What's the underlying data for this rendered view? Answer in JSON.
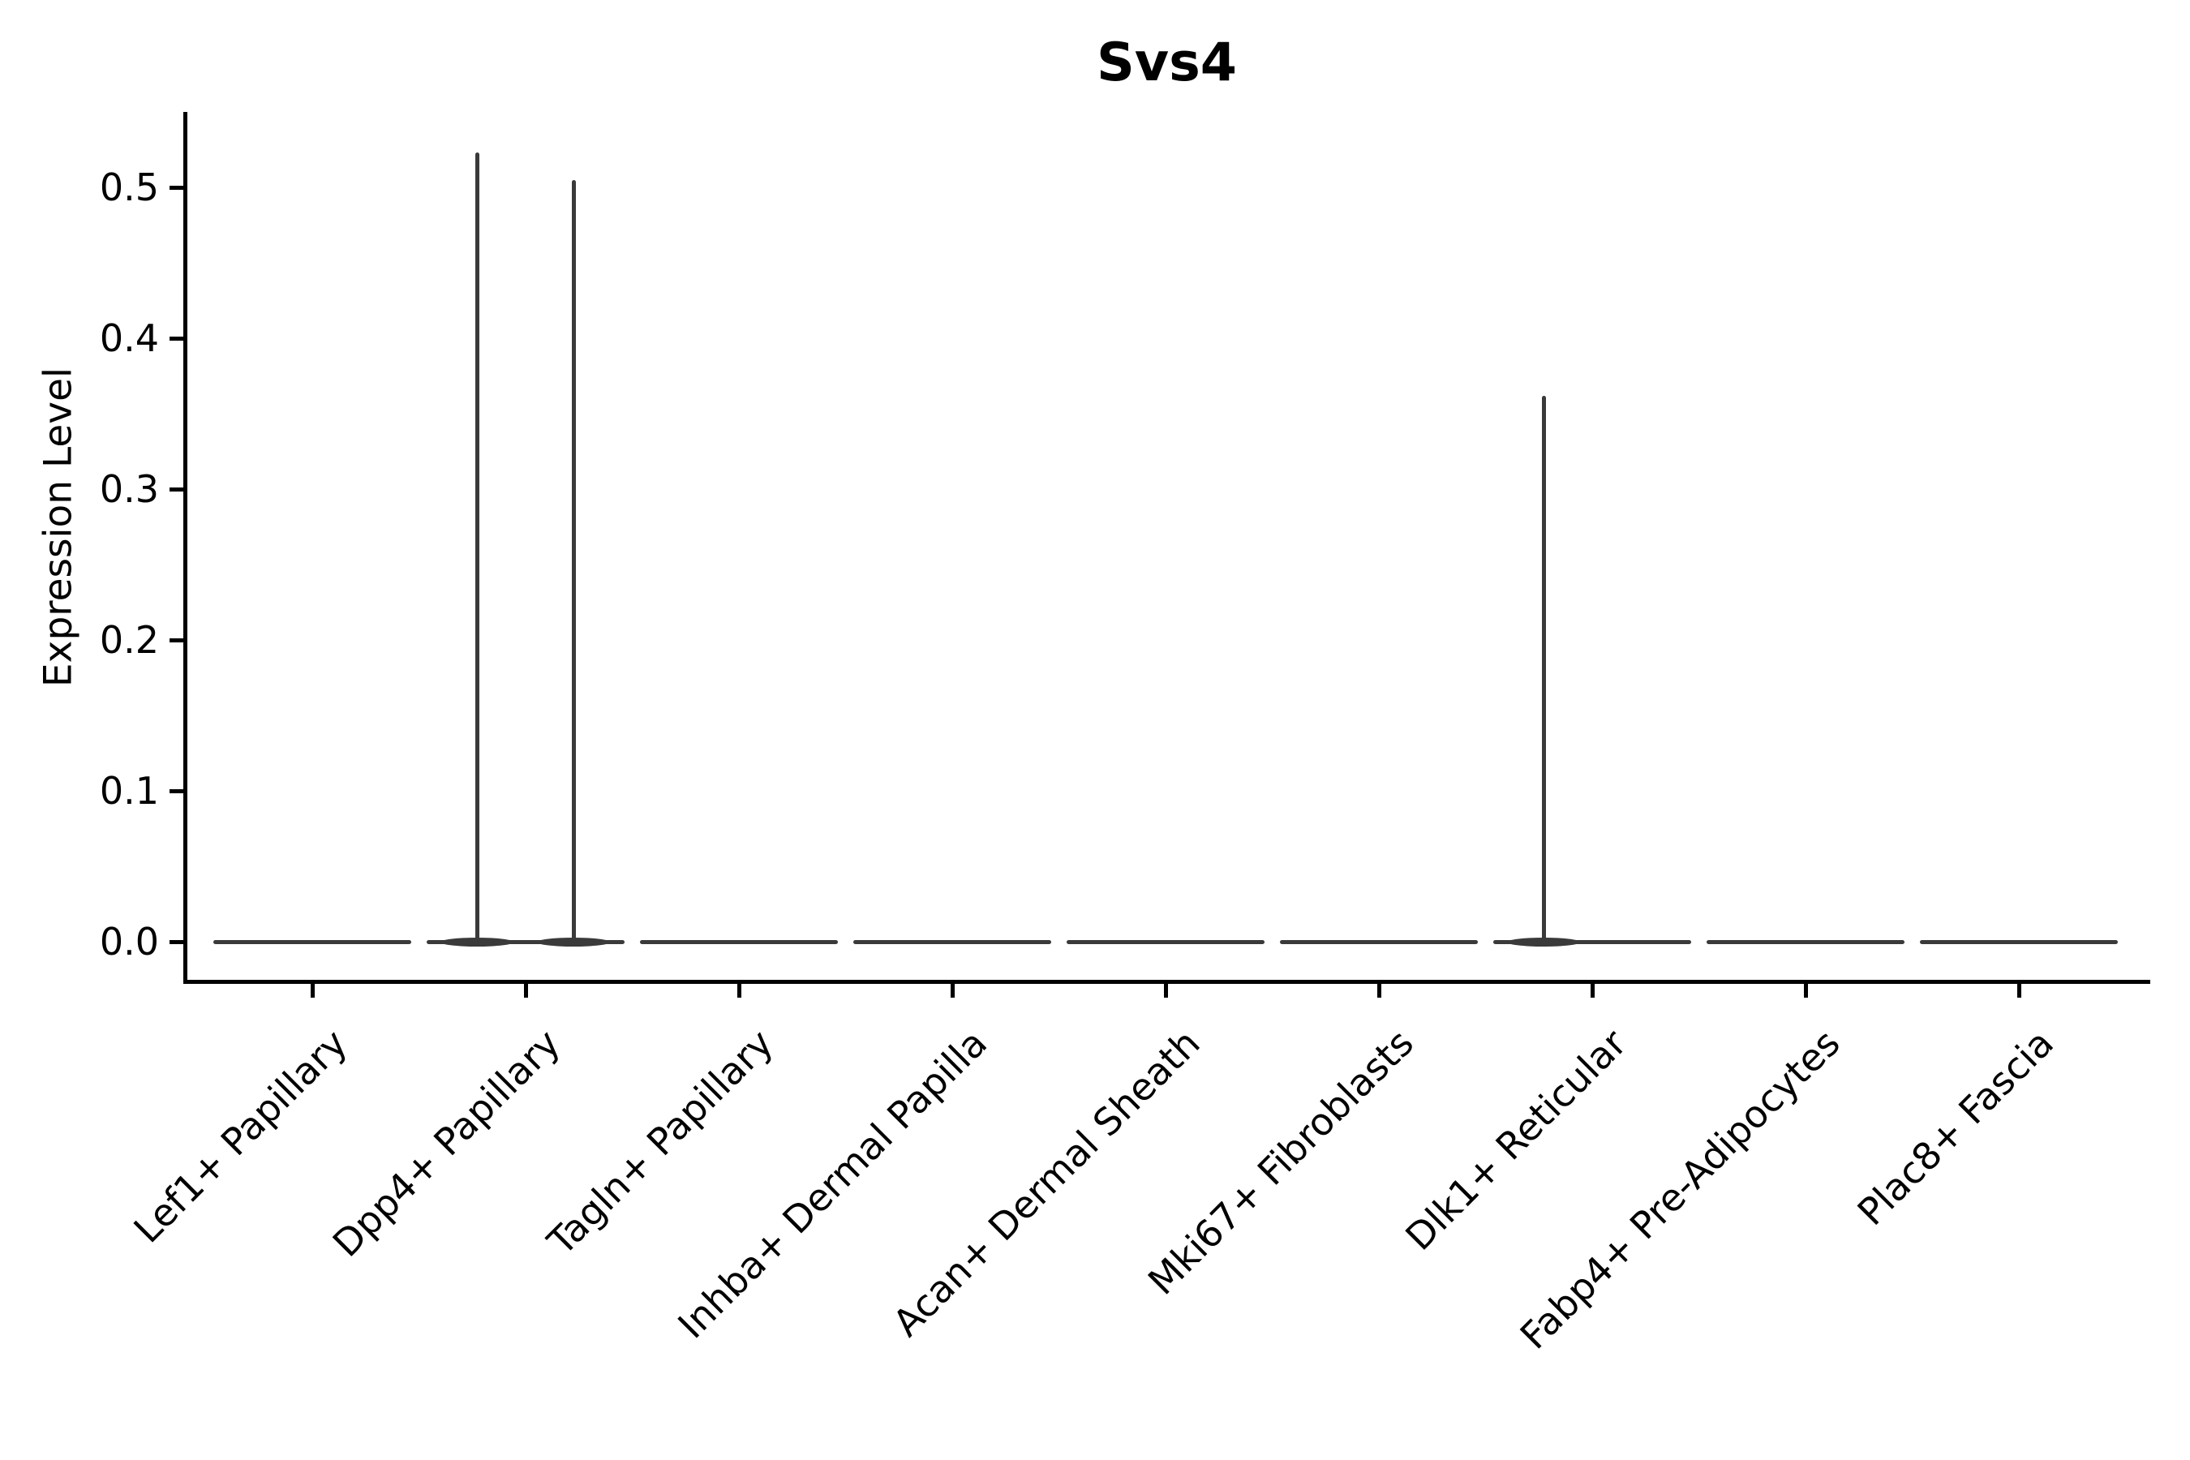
{
  "chart_data": {
    "type": "violin",
    "title": "Svs4",
    "xlabel": "",
    "ylabel": "Expression Level",
    "grid": false,
    "legend": "none",
    "ylim": [
      -0.026,
      0.55
    ],
    "y_ticks": [
      {
        "label": "0.0",
        "value": 0.0
      },
      {
        "label": "0.1",
        "value": 0.1
      },
      {
        "label": "0.2",
        "value": 0.2
      },
      {
        "label": "0.3",
        "value": 0.3
      },
      {
        "label": "0.4",
        "value": 0.4
      },
      {
        "label": "0.5",
        "value": 0.5
      }
    ],
    "categories": [
      "Lef1+ Papillary",
      "Dpp4+ Papillary",
      "Tagln+ Papillary",
      "Inhba+ Dermal Papilla",
      "Acan+ Dermal Sheath",
      "Mki67+ Fibroblasts",
      "Dlk1+ Reticular",
      "Fabp4+ Pre-Adipocytes",
      "Plac8+ Fascia"
    ],
    "violins": [
      {
        "category": "Lef1+ Papillary",
        "bulk_at": 0.0,
        "max_expression": 0.0,
        "spikes": []
      },
      {
        "category": "Dpp4+ Papillary",
        "bulk_at": 0.0,
        "max_expression": 0.523,
        "spikes": [
          {
            "side": "left",
            "peak": 0.523
          },
          {
            "side": "right",
            "peak": 0.505
          }
        ]
      },
      {
        "category": "Tagln+ Papillary",
        "bulk_at": 0.0,
        "max_expression": 0.0,
        "spikes": []
      },
      {
        "category": "Inhba+ Dermal Papilla",
        "bulk_at": 0.0,
        "max_expression": 0.0,
        "spikes": []
      },
      {
        "category": "Acan+ Dermal Sheath",
        "bulk_at": 0.0,
        "max_expression": 0.0,
        "spikes": []
      },
      {
        "category": "Mki67+ Fibroblasts",
        "bulk_at": 0.0,
        "max_expression": 0.0,
        "spikes": []
      },
      {
        "category": "Dlk1+ Reticular",
        "bulk_at": 0.0,
        "max_expression": 0.362,
        "spikes": [
          {
            "side": "left",
            "peak": 0.362
          }
        ]
      },
      {
        "category": "Fabp4+ Pre-Adipocytes",
        "bulk_at": 0.0,
        "max_expression": 0.0,
        "spikes": []
      },
      {
        "category": "Plac8+ Fascia",
        "bulk_at": 0.0,
        "max_expression": 0.0,
        "spikes": []
      }
    ],
    "colors": {
      "violin": "#3a3a3a",
      "axis": "#000000",
      "text": "#000000",
      "background": "#ffffff"
    }
  }
}
